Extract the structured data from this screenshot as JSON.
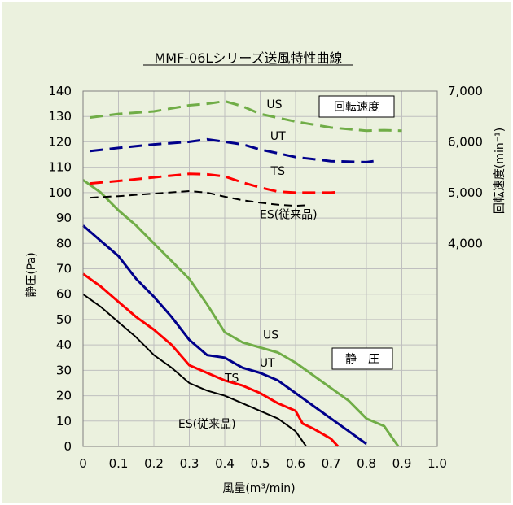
{
  "colors": {
    "background": "#ebf1de",
    "grid": "#bfbfbf",
    "US": "#70ad47",
    "UT": "#00008b",
    "TS": "#ff0000",
    "ES": "#000000"
  },
  "chart_data": {
    "type": "line",
    "title": "MMF-06Lシリーズ送風特性曲線",
    "xlabel": "風量(m³/min)",
    "ylabel": "静圧(Pa)",
    "y2label": "回転速度(min⁻¹)",
    "xlim": [
      0,
      1.0
    ],
    "ylim": [
      0,
      140
    ],
    "y2lim": [
      0,
      7000
    ],
    "x_ticks": [
      "0",
      "0.1",
      "0.2",
      "0.3",
      "0.4",
      "0.5",
      "0.6",
      "0.7",
      "0.8",
      "0.9",
      "1.0"
    ],
    "y_ticks": [
      "0",
      "10",
      "20",
      "30",
      "40",
      "50",
      "60",
      "70",
      "80",
      "90",
      "100",
      "110",
      "120",
      "130",
      "140"
    ],
    "y2_ticks": [
      "4,000",
      "5,000",
      "6,000",
      "7,000"
    ],
    "y2_tick_values": [
      4000,
      5000,
      6000,
      7000
    ],
    "grid": true,
    "box_labels": {
      "speed": "回転速度",
      "pressure": "静　圧"
    },
    "series": [
      {
        "name": "US",
        "key": "US",
        "kind": "pressure",
        "x": [
          0,
          0.05,
          0.1,
          0.15,
          0.2,
          0.25,
          0.3,
          0.35,
          0.4,
          0.45,
          0.5,
          0.55,
          0.6,
          0.65,
          0.7,
          0.75,
          0.8,
          0.85,
          0.88,
          0.89
        ],
        "y": [
          105,
          100,
          93,
          87,
          80,
          73,
          66,
          56,
          45,
          41,
          39,
          37,
          33,
          28,
          23,
          18,
          11,
          8,
          2,
          0
        ]
      },
      {
        "name": "UT",
        "key": "UT",
        "kind": "pressure",
        "x": [
          0,
          0.05,
          0.1,
          0.15,
          0.2,
          0.25,
          0.3,
          0.35,
          0.4,
          0.45,
          0.5,
          0.55,
          0.6,
          0.65,
          0.7,
          0.75,
          0.8
        ],
        "y": [
          87,
          81,
          75,
          66,
          59,
          51,
          42,
          36,
          35,
          31,
          29,
          26,
          21,
          16,
          11,
          6,
          1
        ]
      },
      {
        "name": "TS",
        "key": "TS",
        "kind": "pressure",
        "x": [
          0,
          0.05,
          0.1,
          0.15,
          0.2,
          0.25,
          0.3,
          0.35,
          0.4,
          0.45,
          0.5,
          0.55,
          0.6,
          0.62,
          0.65,
          0.7,
          0.72
        ],
        "y": [
          68,
          63,
          57,
          51,
          46,
          40,
          32,
          29,
          26,
          24,
          21,
          17,
          14,
          9,
          7,
          3,
          0
        ]
      },
      {
        "name": "ES(従来品)",
        "key": "ES",
        "kind": "pressure",
        "x": [
          0,
          0.05,
          0.1,
          0.15,
          0.2,
          0.25,
          0.3,
          0.35,
          0.4,
          0.45,
          0.5,
          0.55,
          0.6,
          0.63
        ],
        "y": [
          60,
          55,
          49,
          43,
          36,
          31,
          25,
          22,
          20,
          17,
          14,
          11,
          6,
          0
        ]
      },
      {
        "name": "US",
        "key": "US",
        "kind": "speed",
        "x": [
          0.02,
          0.1,
          0.2,
          0.3,
          0.35,
          0.4,
          0.45,
          0.5,
          0.6,
          0.7,
          0.8,
          0.85,
          0.9
        ],
        "y": [
          6480,
          6550,
          6600,
          6720,
          6750,
          6800,
          6700,
          6550,
          6400,
          6280,
          6220,
          6230,
          6220
        ]
      },
      {
        "name": "UT",
        "key": "UT",
        "kind": "speed",
        "x": [
          0.02,
          0.1,
          0.2,
          0.3,
          0.35,
          0.4,
          0.45,
          0.5,
          0.6,
          0.7,
          0.8,
          0.82
        ],
        "y": [
          5820,
          5880,
          5950,
          6000,
          6050,
          6000,
          5950,
          5850,
          5700,
          5620,
          5600,
          5620
        ]
      },
      {
        "name": "TS",
        "key": "TS",
        "kind": "speed",
        "x": [
          0.02,
          0.1,
          0.2,
          0.3,
          0.35,
          0.4,
          0.45,
          0.5,
          0.55,
          0.6,
          0.65,
          0.7,
          0.72
        ],
        "y": [
          5180,
          5230,
          5300,
          5370,
          5360,
          5320,
          5200,
          5100,
          5020,
          5000,
          5000,
          5000,
          5010
        ]
      },
      {
        "name": "ES(従来品)",
        "key": "ES",
        "kind": "speed",
        "x": [
          0.02,
          0.1,
          0.2,
          0.3,
          0.35,
          0.4,
          0.45,
          0.5,
          0.55,
          0.6,
          0.63
        ],
        "y": [
          4900,
          4930,
          4980,
          5030,
          5000,
          4920,
          4850,
          4800,
          4760,
          4740,
          4750
        ]
      }
    ],
    "series_labels": [
      {
        "text": "US",
        "x": 0.54,
        "y2": 6740
      },
      {
        "text": "UT",
        "x": 0.55,
        "y2": 6120
      },
      {
        "text": "TS",
        "x": 0.55,
        "y2": 5430
      },
      {
        "text": "ES(従来品)",
        "x": 0.58,
        "y2": 4570
      },
      {
        "text": "US",
        "x": 0.53,
        "y": 44
      },
      {
        "text": "UT",
        "x": 0.52,
        "y": 33
      },
      {
        "text": "TS",
        "x": 0.42,
        "y": 27
      },
      {
        "text": "ES(従来品)",
        "x": 0.35,
        "y": 9
      }
    ]
  }
}
